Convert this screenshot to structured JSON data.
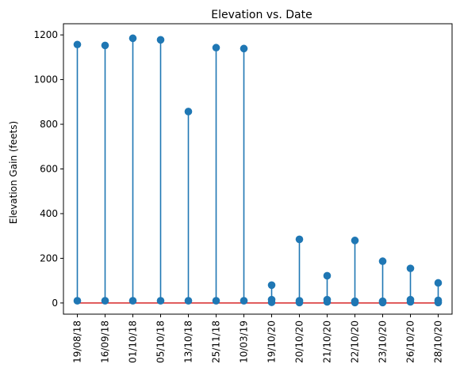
{
  "chart_data": {
    "type": "stem",
    "title": "Elevation vs. Date",
    "xlabel": "",
    "ylabel": "Elevation Gain (feets)",
    "ylim": [
      -50,
      1250
    ],
    "yticks": [
      0,
      200,
      400,
      600,
      800,
      1000,
      1200
    ],
    "categories": [
      "19/08/18",
      "16/09/18",
      "01/10/18",
      "05/10/18",
      "13/10/18",
      "25/11/18",
      "10/03/19",
      "19/10/20",
      "20/10/20",
      "21/10/20",
      "22/10/20",
      "23/10/20",
      "26/10/20",
      "28/10/20"
    ],
    "points": [
      {
        "x": "19/08/18",
        "y": 1157
      },
      {
        "x": "19/08/18",
        "y": 10
      },
      {
        "x": "16/09/18",
        "y": 1153
      },
      {
        "x": "16/09/18",
        "y": 10
      },
      {
        "x": "01/10/18",
        "y": 1185
      },
      {
        "x": "01/10/18",
        "y": 10
      },
      {
        "x": "05/10/18",
        "y": 1178
      },
      {
        "x": "05/10/18",
        "y": 10
      },
      {
        "x": "13/10/18",
        "y": 857
      },
      {
        "x": "13/10/18",
        "y": 10
      },
      {
        "x": "25/11/18",
        "y": 1143
      },
      {
        "x": "25/11/18",
        "y": 10
      },
      {
        "x": "10/03/19",
        "y": 1139
      },
      {
        "x": "10/03/19",
        "y": 10
      },
      {
        "x": "19/10/20",
        "y": 80
      },
      {
        "x": "19/10/20",
        "y": 15
      },
      {
        "x": "19/10/20",
        "y": 3
      },
      {
        "x": "20/10/20",
        "y": 285
      },
      {
        "x": "20/10/20",
        "y": 10
      },
      {
        "x": "20/10/20",
        "y": 2
      },
      {
        "x": "21/10/20",
        "y": 122
      },
      {
        "x": "21/10/20",
        "y": 15
      },
      {
        "x": "21/10/20",
        "y": 5
      },
      {
        "x": "22/10/20",
        "y": 280
      },
      {
        "x": "22/10/20",
        "y": 8
      },
      {
        "x": "22/10/20",
        "y": 2
      },
      {
        "x": "23/10/20",
        "y": 187
      },
      {
        "x": "23/10/20",
        "y": 8
      },
      {
        "x": "23/10/20",
        "y": 2
      },
      {
        "x": "26/10/20",
        "y": 155
      },
      {
        "x": "26/10/20",
        "y": 15
      },
      {
        "x": "26/10/20",
        "y": 5
      },
      {
        "x": "28/10/20",
        "y": 90
      },
      {
        "x": "28/10/20",
        "y": 12
      },
      {
        "x": "28/10/20",
        "y": 2
      }
    ],
    "baseline": 0,
    "stem_color": "#1f77b4",
    "baseline_color": "#d62728",
    "grid": false,
    "legend": "none"
  }
}
